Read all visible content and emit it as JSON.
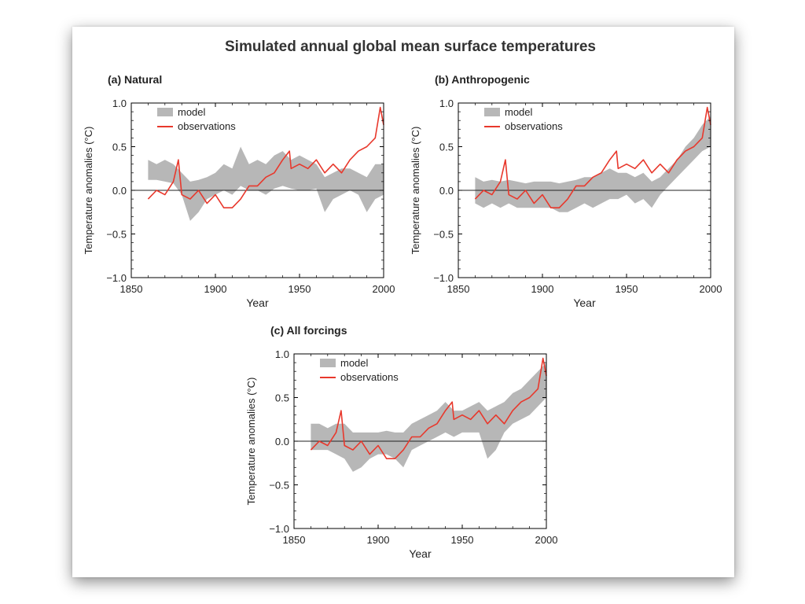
{
  "figure": {
    "title": "Simulated annual global mean surface temperatures"
  },
  "colors": {
    "model": "#b7b7b7",
    "observations": "#e8382c",
    "axis": "#000000"
  },
  "chart_data": [
    {
      "type": "line",
      "panel_label": "(a) Natural",
      "xlabel": "Year",
      "ylabel": "Temperature anomalies (°C)",
      "xlim": [
        1850,
        2000
      ],
      "ylim": [
        -1.0,
        1.0
      ],
      "x_ticks": [
        "1850",
        "1900",
        "1950",
        "2000"
      ],
      "y_ticks": [
        "1.0",
        "0.5",
        "0.0",
        "−0.5",
        "−1.0"
      ],
      "legend": [
        "model",
        "observations"
      ],
      "legend_position": "top-left",
      "grid": false,
      "series": [
        {
          "name": "model",
          "style": "band",
          "x": [
            1860,
            1865,
            1870,
            1875,
            1880,
            1885,
            1890,
            1895,
            1900,
            1905,
            1910,
            1915,
            1920,
            1925,
            1930,
            1935,
            1940,
            1945,
            1950,
            1955,
            1960,
            1965,
            1970,
            1975,
            1980,
            1985,
            1990,
            1995,
            2000
          ],
          "lower": [
            0.12,
            0.12,
            0.1,
            0.08,
            -0.05,
            -0.35,
            -0.25,
            -0.1,
            -0.05,
            0.0,
            -0.05,
            0.05,
            0.0,
            0.0,
            -0.05,
            0.02,
            0.05,
            0.02,
            0.0,
            0.0,
            0.02,
            -0.25,
            -0.1,
            -0.05,
            0.0,
            -0.05,
            -0.25,
            -0.1,
            -0.05
          ],
          "upper": [
            0.35,
            0.3,
            0.35,
            0.3,
            0.2,
            0.1,
            0.12,
            0.15,
            0.2,
            0.3,
            0.25,
            0.5,
            0.3,
            0.35,
            0.3,
            0.4,
            0.45,
            0.35,
            0.4,
            0.35,
            0.3,
            0.15,
            0.2,
            0.25,
            0.25,
            0.2,
            0.15,
            0.3,
            0.3
          ]
        },
        {
          "name": "observations",
          "x": [
            1860,
            1865,
            1870,
            1875,
            1878,
            1880,
            1885,
            1890,
            1895,
            1900,
            1905,
            1910,
            1915,
            1920,
            1925,
            1930,
            1935,
            1940,
            1944,
            1945,
            1950,
            1955,
            1960,
            1965,
            1970,
            1975,
            1980,
            1985,
            1990,
            1995,
            1998,
            2000
          ],
          "y": [
            -0.1,
            0.0,
            -0.05,
            0.1,
            0.35,
            -0.05,
            -0.1,
            0.0,
            -0.15,
            -0.05,
            -0.2,
            -0.2,
            -0.1,
            0.05,
            0.05,
            0.15,
            0.2,
            0.35,
            0.45,
            0.25,
            0.3,
            0.25,
            0.35,
            0.2,
            0.3,
            0.2,
            0.35,
            0.45,
            0.5,
            0.6,
            0.95,
            0.75
          ]
        }
      ]
    },
    {
      "type": "line",
      "panel_label": "(b) Anthropogenic",
      "xlabel": "Year",
      "ylabel": "Temperature anomalies (°C)",
      "xlim": [
        1850,
        2000
      ],
      "ylim": [
        -1.0,
        1.0
      ],
      "x_ticks": [
        "1850",
        "1900",
        "1950",
        "2000"
      ],
      "y_ticks": [
        "1.0",
        "0.5",
        "0.0",
        "−0.5",
        "−1.0"
      ],
      "legend": [
        "model",
        "observations"
      ],
      "legend_position": "top-left",
      "grid": false,
      "series": [
        {
          "name": "model",
          "style": "band",
          "x": [
            1860,
            1865,
            1870,
            1875,
            1880,
            1885,
            1890,
            1895,
            1900,
            1905,
            1910,
            1915,
            1920,
            1925,
            1930,
            1935,
            1940,
            1945,
            1950,
            1955,
            1960,
            1965,
            1970,
            1975,
            1980,
            1985,
            1990,
            1995,
            2000
          ],
          "lower": [
            -0.15,
            -0.2,
            -0.15,
            -0.2,
            -0.15,
            -0.2,
            -0.2,
            -0.2,
            -0.2,
            -0.2,
            -0.25,
            -0.25,
            -0.2,
            -0.15,
            -0.2,
            -0.15,
            -0.1,
            -0.1,
            -0.05,
            -0.15,
            -0.1,
            -0.2,
            -0.05,
            0.05,
            0.15,
            0.25,
            0.35,
            0.45,
            0.5
          ],
          "upper": [
            0.15,
            0.1,
            0.12,
            0.1,
            0.12,
            0.1,
            0.08,
            0.1,
            0.1,
            0.1,
            0.08,
            0.1,
            0.12,
            0.15,
            0.15,
            0.2,
            0.25,
            0.2,
            0.2,
            0.15,
            0.2,
            0.1,
            0.15,
            0.25,
            0.35,
            0.5,
            0.6,
            0.75,
            0.85
          ]
        },
        {
          "name": "observations",
          "x": [
            1860,
            1865,
            1870,
            1875,
            1878,
            1880,
            1885,
            1890,
            1895,
            1900,
            1905,
            1910,
            1915,
            1920,
            1925,
            1930,
            1935,
            1940,
            1944,
            1945,
            1950,
            1955,
            1960,
            1965,
            1970,
            1975,
            1980,
            1985,
            1990,
            1995,
            1998,
            2000
          ],
          "y": [
            -0.1,
            0.0,
            -0.05,
            0.1,
            0.35,
            -0.05,
            -0.1,
            0.0,
            -0.15,
            -0.05,
            -0.2,
            -0.2,
            -0.1,
            0.05,
            0.05,
            0.15,
            0.2,
            0.35,
            0.45,
            0.25,
            0.3,
            0.25,
            0.35,
            0.2,
            0.3,
            0.2,
            0.35,
            0.45,
            0.5,
            0.6,
            0.95,
            0.75
          ]
        }
      ]
    },
    {
      "type": "line",
      "panel_label": "(c) All forcings",
      "xlabel": "Year",
      "ylabel": "Temperature anomalies (°C)",
      "xlim": [
        1850,
        2000
      ],
      "ylim": [
        -1.0,
        1.0
      ],
      "x_ticks": [
        "1850",
        "1900",
        "1950",
        "2000"
      ],
      "y_ticks": [
        "1.0",
        "0.5",
        "0.0",
        "−0.5",
        "−1.0"
      ],
      "legend": [
        "model",
        "observations"
      ],
      "legend_position": "top-left",
      "grid": false,
      "series": [
        {
          "name": "model",
          "style": "band",
          "x": [
            1860,
            1865,
            1870,
            1875,
            1880,
            1885,
            1890,
            1895,
            1900,
            1905,
            1910,
            1915,
            1920,
            1925,
            1930,
            1935,
            1940,
            1945,
            1950,
            1955,
            1960,
            1965,
            1970,
            1975,
            1980,
            1985,
            1990,
            1995,
            2000
          ],
          "lower": [
            -0.1,
            -0.1,
            -0.1,
            -0.15,
            -0.2,
            -0.35,
            -0.3,
            -0.2,
            -0.15,
            -0.15,
            -0.2,
            -0.3,
            -0.1,
            -0.05,
            0.0,
            0.05,
            0.1,
            0.05,
            0.1,
            0.1,
            0.1,
            -0.2,
            -0.1,
            0.1,
            0.2,
            0.25,
            0.3,
            0.4,
            0.5
          ],
          "upper": [
            0.2,
            0.2,
            0.15,
            0.2,
            0.2,
            0.1,
            0.1,
            0.1,
            0.1,
            0.12,
            0.1,
            0.1,
            0.2,
            0.25,
            0.3,
            0.35,
            0.45,
            0.35,
            0.35,
            0.4,
            0.45,
            0.35,
            0.4,
            0.45,
            0.55,
            0.6,
            0.7,
            0.8,
            0.9
          ]
        },
        {
          "name": "observations",
          "x": [
            1860,
            1865,
            1870,
            1875,
            1878,
            1880,
            1885,
            1890,
            1895,
            1900,
            1905,
            1910,
            1915,
            1920,
            1925,
            1930,
            1935,
            1940,
            1944,
            1945,
            1950,
            1955,
            1960,
            1965,
            1970,
            1975,
            1980,
            1985,
            1990,
            1995,
            1998,
            2000
          ],
          "y": [
            -0.1,
            0.0,
            -0.05,
            0.1,
            0.35,
            -0.05,
            -0.1,
            0.0,
            -0.15,
            -0.05,
            -0.2,
            -0.2,
            -0.1,
            0.05,
            0.05,
            0.15,
            0.2,
            0.35,
            0.45,
            0.25,
            0.3,
            0.25,
            0.35,
            0.2,
            0.3,
            0.2,
            0.35,
            0.45,
            0.5,
            0.6,
            0.95,
            0.75
          ]
        }
      ]
    }
  ]
}
